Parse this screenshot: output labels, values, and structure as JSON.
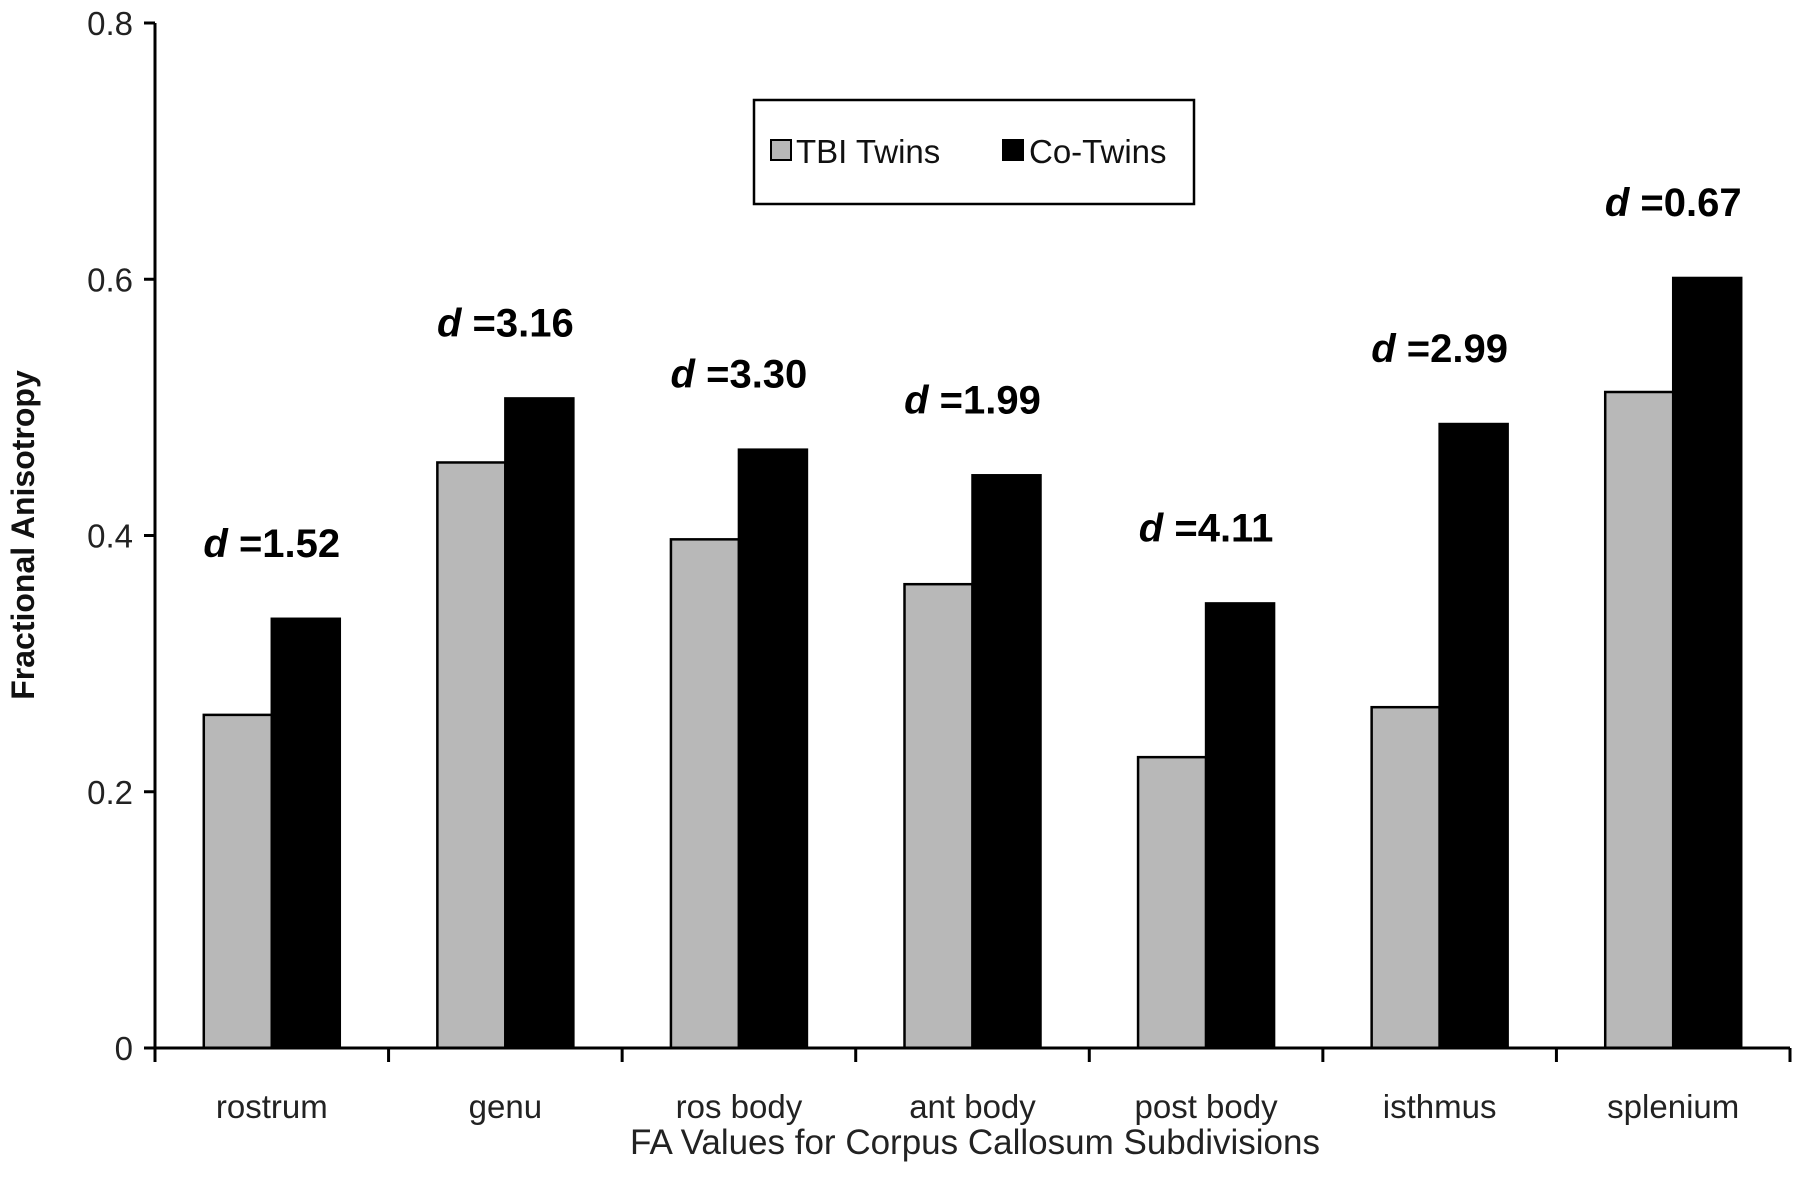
{
  "chart_data": {
    "type": "bar",
    "title": "",
    "xlabel": "FA Values for Corpus Callosum Subdivisions",
    "ylabel": "Fractional Anisotropy",
    "ylim": [
      0,
      0.8
    ],
    "yticks": [
      "0",
      "0.2",
      "0.4",
      "0.6",
      "0.8"
    ],
    "categories": [
      "rostrum",
      "genu",
      "ros body",
      "ant body",
      "post body",
      "isthmus",
      "splenium"
    ],
    "series": [
      {
        "name": "TBI Twins",
        "color": "#b8b8b8",
        "values": [
          0.26,
          0.457,
          0.397,
          0.362,
          0.227,
          0.266,
          0.512
        ]
      },
      {
        "name": "Co-Twins",
        "color": "#000000",
        "values": [
          0.335,
          0.507,
          0.467,
          0.447,
          0.347,
          0.487,
          0.601
        ]
      }
    ],
    "annotations": [
      {
        "prefix": "d",
        "text": " =1.52"
      },
      {
        "prefix": "d",
        "text": " =3.16"
      },
      {
        "prefix": "d",
        "text": " =3.30"
      },
      {
        "prefix": "d",
        "text": " =1.99"
      },
      {
        "prefix": "d",
        "text": " =4.11"
      },
      {
        "prefix": "d",
        "text": " =2.99"
      },
      {
        "prefix": "d",
        "text": " =0.67"
      }
    ],
    "legend_position": "top-center",
    "grid": false
  }
}
